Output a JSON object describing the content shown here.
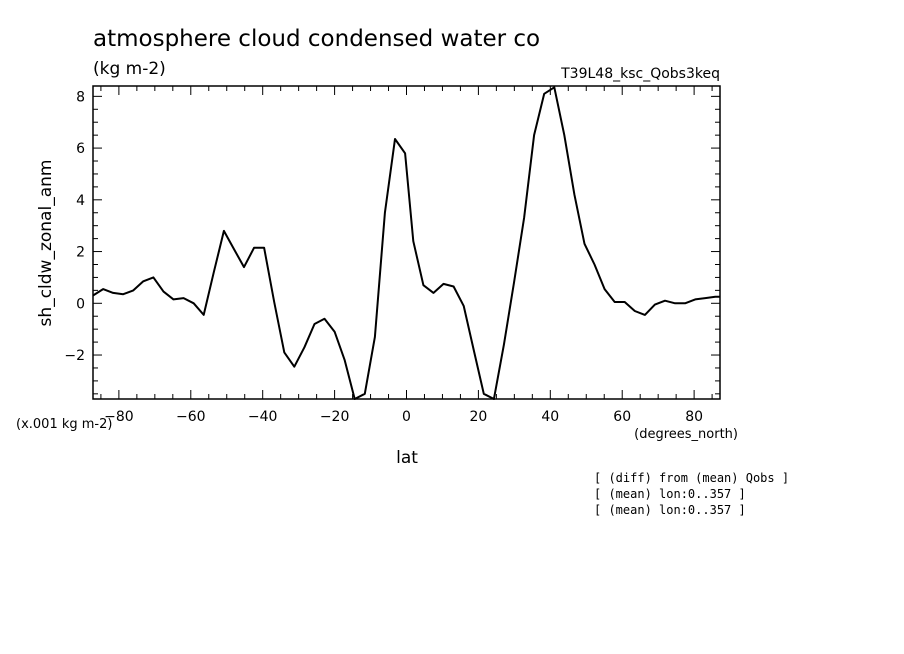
{
  "title": "atmosphere cloud condensed water co",
  "units": "(kg m-2)",
  "run_label": "T39L48_ksc_Qobs3keq",
  "scale_note": "(x.001 kg m-2)",
  "xunits": "(degrees_north)",
  "footnotes": [
    "[ (diff) from (mean) Qobs ]",
    "[ (mean) lon:0..357 ]",
    "[ (mean) lon:0..357 ]"
  ],
  "chart_data": {
    "type": "line",
    "title": "atmosphere cloud condensed water co",
    "xlabel": "lat",
    "ylabel": "sh_cldw_zonal_anm",
    "xlim": [
      -87.2,
      87.2
    ],
    "ylim": [
      -3.7,
      8.4
    ],
    "xticks": [
      -80,
      -60,
      -40,
      -20,
      0,
      20,
      40,
      60,
      80
    ],
    "yticks": [
      -2,
      0,
      2,
      4,
      6,
      8
    ],
    "grid": false,
    "series": [
      {
        "x": [
          -87.2,
          -84.4,
          -81.6,
          -78.8,
          -76.0,
          -73.2,
          -70.4,
          -67.6,
          -64.8,
          -62.0,
          -59.2,
          -56.4,
          -53.6,
          -50.8,
          -48.0,
          -45.2,
          -42.4,
          -39.6,
          -36.8,
          -34.0,
          -31.2,
          -28.4,
          -25.6,
          -22.8,
          -20.0,
          -17.2,
          -14.4,
          -11.6,
          -8.8,
          -6.0,
          -3.2,
          -0.4,
          1.9,
          4.7,
          7.5,
          10.3,
          13.1,
          15.9,
          18.7,
          21.5,
          24.3,
          27.1,
          29.9,
          32.7,
          35.5,
          38.3,
          41.1,
          43.9,
          46.7,
          49.5,
          52.3,
          55.1,
          57.9,
          60.7,
          63.5,
          66.3,
          69.1,
          71.9,
          74.7,
          77.5,
          80.3,
          83.1,
          85.9,
          87.2
        ],
        "y": [
          0.3,
          0.55,
          0.4,
          0.35,
          0.5,
          0.85,
          1.0,
          0.45,
          0.15,
          0.2,
          0.0,
          -0.45,
          1.2,
          2.8,
          2.1,
          1.4,
          2.15,
          2.15,
          0.05,
          -1.9,
          -2.45,
          -1.7,
          -0.8,
          -0.6,
          -1.1,
          -2.2,
          -3.7,
          -3.5,
          -1.3,
          3.5,
          6.35,
          5.8,
          2.4,
          0.7,
          0.4,
          0.75,
          0.65,
          -0.1,
          -1.8,
          -3.5,
          -3.7,
          -1.6,
          0.8,
          3.3,
          6.5,
          8.1,
          8.35,
          6.5,
          4.2,
          2.3,
          1.5,
          0.55,
          0.05,
          0.05,
          -0.3,
          -0.45,
          -0.05,
          0.1,
          0.0,
          0.0,
          0.15,
          0.2,
          0.25,
          0.25
        ]
      }
    ]
  }
}
